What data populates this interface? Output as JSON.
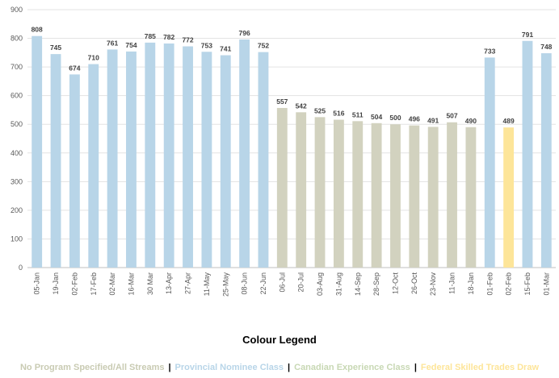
{
  "chart_data": {
    "type": "bar",
    "title": "",
    "xlabel": "",
    "ylabel": "",
    "ylim": [
      0,
      900
    ],
    "yticks": [
      0,
      100,
      200,
      300,
      400,
      500,
      600,
      700,
      800,
      900
    ],
    "grid": true,
    "categories": [
      "05-Jan",
      "19-Jan",
      "02-Feb",
      "17-Feb",
      "02-Mar",
      "16-Mar",
      "30 Mar",
      "13-Apr",
      "27-Apr",
      "11-May",
      "25-May",
      "08-Jun",
      "22-Jun",
      "06-Jul",
      "20-Jul",
      "03-Aug",
      "31-Aug",
      "14-Sep",
      "28-Sep",
      "12-Oct",
      "26-Oct",
      "23-Nov",
      "11-Jan",
      "18-Jan",
      "01-Feb",
      "02-Feb",
      "15-Feb",
      "01-Mar"
    ],
    "values": [
      808,
      745,
      674,
      710,
      761,
      754,
      785,
      782,
      772,
      753,
      741,
      796,
      752,
      557,
      542,
      525,
      516,
      511,
      504,
      500,
      496,
      491,
      507,
      490,
      733,
      489,
      791,
      748
    ],
    "bar_classes": [
      "pnp",
      "pnp",
      "pnp",
      "pnp",
      "pnp",
      "pnp",
      "pnp",
      "pnp",
      "pnp",
      "pnp",
      "pnp",
      "pnp",
      "pnp",
      "all",
      "all",
      "all",
      "all",
      "all",
      "all",
      "all",
      "all",
      "all",
      "all",
      "all",
      "pnp",
      "fst",
      "pnp",
      "pnp"
    ],
    "class_colors": {
      "pnp": "#b8d5e8",
      "all": "#d2d2bf",
      "fst": "#fde599"
    }
  },
  "legend": {
    "title": "Colour Legend",
    "items": [
      {
        "label": "No Program Specified/All Streams",
        "color": "#c9cbb3"
      },
      {
        "label": "Provincial Nominee Class",
        "color": "#b8d5e8"
      },
      {
        "label": "Canadian Experience Class",
        "color": "#c8d8b4"
      },
      {
        "label": "Federal Skilled Trades Draw",
        "color": "#fde599"
      }
    ],
    "separator": "|"
  }
}
